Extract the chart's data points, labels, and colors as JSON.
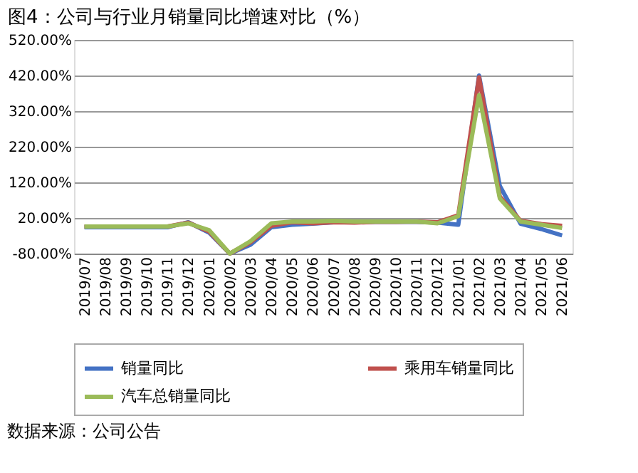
{
  "chart_data": {
    "type": "line",
    "title": "图4：公司与行业月销量同比增速对比（%）",
    "categories": [
      "2019/07",
      "2019/08",
      "2019/09",
      "2019/10",
      "2019/11",
      "2019/12",
      "2020/01",
      "2020/02",
      "2020/03",
      "2020/04",
      "2020/05",
      "2020/06",
      "2020/07",
      "2020/08",
      "2020/09",
      "2020/10",
      "2020/11",
      "2020/12",
      "2021/01",
      "2021/02",
      "2021/03",
      "2021/04",
      "2021/05",
      "2021/06"
    ],
    "series": [
      {
        "name": "销量同比",
        "color": "#4472c4",
        "values": [
          -6,
          -6,
          -6,
          -6,
          -6,
          8,
          -21,
          -80,
          -55,
          -6,
          1,
          4,
          8,
          8,
          9,
          9,
          9,
          7,
          1,
          420,
          110,
          4,
          -11,
          -29
        ]
      },
      {
        "name": "乘用车销量同比",
        "color": "#c0504d",
        "values": [
          -4,
          -4,
          -4,
          -4,
          -4,
          7,
          -18,
          -80,
          -48,
          -2,
          8,
          5,
          8,
          7,
          9,
          9,
          10,
          8,
          28,
          415,
          80,
          12,
          3,
          -2
        ]
      },
      {
        "name": "汽车总销量同比",
        "color": "#9bbb59",
        "values": [
          -4,
          -4,
          -4,
          -4,
          -4,
          5,
          -14,
          -80,
          -45,
          5,
          10,
          10,
          12,
          10,
          10,
          10,
          10,
          5,
          25,
          365,
          75,
          10,
          1,
          -8
        ]
      }
    ],
    "ylim": [
      -80,
      520
    ],
    "yticks": [
      {
        "value": -80,
        "label": "-80.00%"
      },
      {
        "value": 20,
        "label": "20.00%"
      },
      {
        "value": 120,
        "label": "120.00%"
      },
      {
        "value": 220,
        "label": "220.00%"
      },
      {
        "value": 320,
        "label": "320.00%"
      },
      {
        "value": 420,
        "label": "420.00%"
      },
      {
        "value": 520,
        "label": "520.00%"
      }
    ],
    "grid": "y",
    "legend": "bottom",
    "marker": "none",
    "line_style": "solid",
    "annotations": [
      "数据来源：公司公告"
    ]
  }
}
